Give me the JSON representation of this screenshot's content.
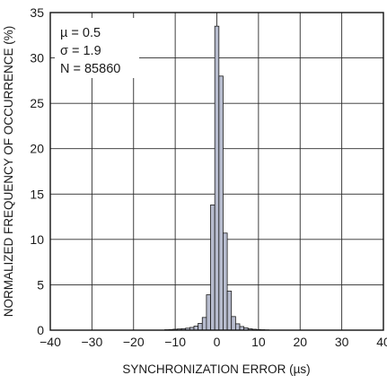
{
  "chart_data": {
    "type": "bar",
    "title": "",
    "xlabel": "SYNCHRONIZATION ERROR (µs)",
    "ylabel": "NORMALIZED FREQUENCY OF OCCURRENCE (%)",
    "xlim": [
      -40,
      40
    ],
    "ylim": [
      0,
      35
    ],
    "xticks": [
      -40,
      -30,
      -20,
      -10,
      0,
      10,
      20,
      30,
      40
    ],
    "yticks": [
      0,
      5,
      10,
      15,
      20,
      25,
      30,
      35
    ],
    "xtick_labels": [
      "−40",
      "−30",
      "−20",
      "−10",
      "0",
      "10",
      "20",
      "30",
      "40"
    ],
    "ytick_labels": [
      "0",
      "5",
      "10",
      "15",
      "20",
      "25",
      "30",
      "35"
    ],
    "grid": true,
    "bin_width": 1,
    "bins": [
      {
        "x": -12,
        "value": 0.05
      },
      {
        "x": -11,
        "value": 0.07
      },
      {
        "x": -10,
        "value": 0.1
      },
      {
        "x": -9,
        "value": 0.13
      },
      {
        "x": -8,
        "value": 0.17
      },
      {
        "x": -7,
        "value": 0.22
      },
      {
        "x": -6,
        "value": 0.3
      },
      {
        "x": -5,
        "value": 0.45
      },
      {
        "x": -4,
        "value": 0.75
      },
      {
        "x": -3,
        "value": 1.4
      },
      {
        "x": -2,
        "value": 3.9
      },
      {
        "x": -1,
        "value": 13.8
      },
      {
        "x": 0,
        "value": 33.5
      },
      {
        "x": 1,
        "value": 28.0
      },
      {
        "x": 2,
        "value": 10.7
      },
      {
        "x": 3,
        "value": 4.3
      },
      {
        "x": 4,
        "value": 1.5
      },
      {
        "x": 5,
        "value": 0.7
      },
      {
        "x": 6,
        "value": 0.4
      },
      {
        "x": 7,
        "value": 0.25
      },
      {
        "x": 8,
        "value": 0.15
      },
      {
        "x": 9,
        "value": 0.1
      },
      {
        "x": 10,
        "value": 0.07
      },
      {
        "x": 11,
        "value": 0.05
      },
      {
        "x": 12,
        "value": 0.03
      }
    ],
    "annotations": [
      "µ = 0.5",
      "σ = 1.9",
      "N = 85860"
    ],
    "colors": {
      "bar_fill": "#b7bcce",
      "bar_stroke": "#1a1a1a",
      "grid": "#2a2a2a",
      "axis": "#111111"
    }
  }
}
